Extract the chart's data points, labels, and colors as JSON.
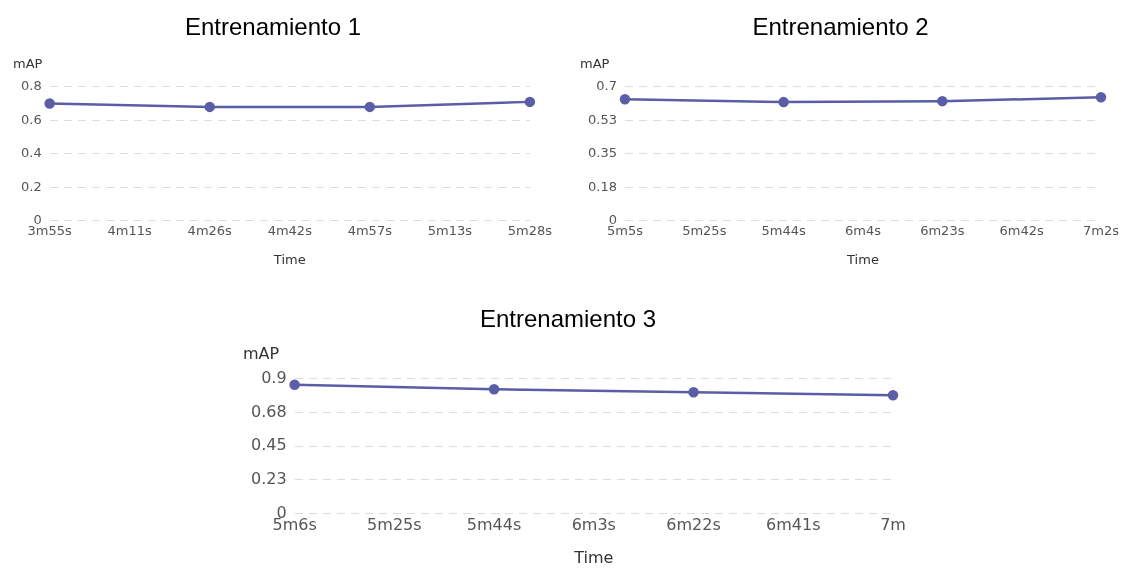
{
  "chart_data": [
    {
      "type": "line",
      "title": "Entrenamiento 1",
      "xlabel": "Time",
      "ylabel": "mAP",
      "categories": [
        "3m55s",
        "4m11s",
        "4m26s",
        "4m42s",
        "4m57s",
        "5m13s",
        "5m28s"
      ],
      "series": [
        {
          "color": "#5b5ea6",
          "values": [
            0.7,
            null,
            0.68,
            null,
            0.68,
            null,
            0.71
          ]
        }
      ],
      "ylim": [
        0,
        0.8
      ],
      "yticks": [
        0,
        0.2,
        0.4,
        0.6,
        0.8
      ],
      "grid": "y",
      "marker": "circle",
      "legend": false
    },
    {
      "type": "line",
      "title": "Entrenamiento 2",
      "xlabel": "Time",
      "ylabel": "mAP",
      "categories": [
        "5m5s",
        "5m25s",
        "5m44s",
        "6m4s",
        "6m23s",
        "6m42s",
        "7m2s"
      ],
      "series": [
        {
          "color": "#5b5ea6",
          "values": [
            0.635,
            null,
            0.62,
            null,
            0.625,
            null,
            0.645
          ]
        }
      ],
      "ylim": [
        0,
        0.7
      ],
      "yticks": [
        0,
        {
          "value": 0.175,
          "label": "0.18"
        },
        {
          "value": 0.35,
          "label": "0.35"
        },
        {
          "value": 0.525,
          "label": "0.53"
        },
        0.7
      ],
      "grid": "y",
      "marker": "circle",
      "legend": false
    },
    {
      "type": "line",
      "title": "Entrenamiento 3",
      "xlabel": "Time",
      "ylabel": "mAP",
      "categories": [
        "5m6s",
        "5m25s",
        "5m44s",
        "6m3s",
        "6m22s",
        "6m41s",
        "7m"
      ],
      "series": [
        {
          "color": "#5b5ea6",
          "values": [
            0.86,
            null,
            0.83,
            null,
            0.81,
            null,
            0.79
          ]
        }
      ],
      "ylim": [
        0,
        0.9
      ],
      "yticks": [
        0,
        {
          "value": 0.225,
          "label": "0.23"
        },
        0.45,
        {
          "value": 0.675,
          "label": "0.68"
        },
        0.9
      ],
      "grid": "y",
      "marker": "circle",
      "legend": false
    }
  ]
}
